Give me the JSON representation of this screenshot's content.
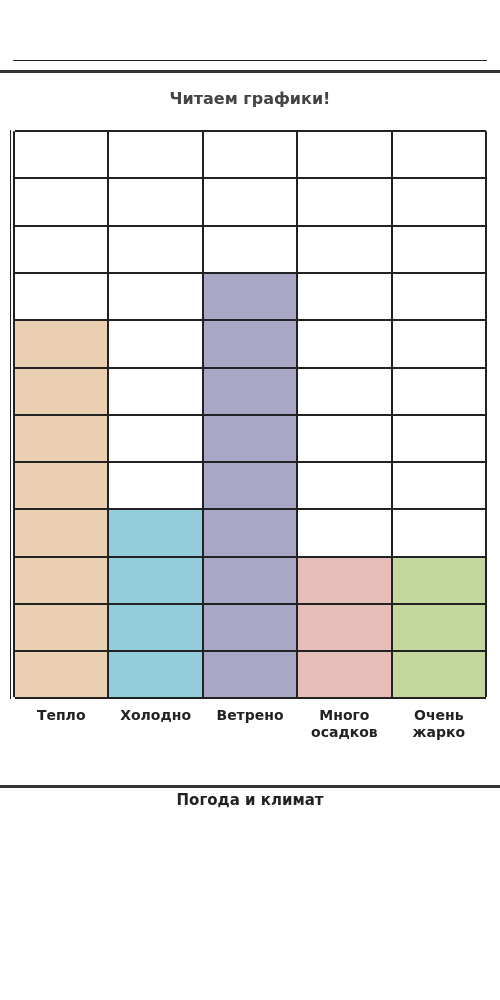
{
  "chart_data": {
    "type": "bar",
    "title": "Читаем графики!",
    "x_label": "Погода и климат",
    "categories": [
      "Тепло",
      "Холодно",
      "Ветрено",
      "Много осадков",
      "Очень жарко"
    ],
    "values": [
      8,
      4,
      9,
      3,
      3
    ],
    "colors": [
      "#ebcfb3",
      "#93cddb",
      "#a8a7c6",
      "#e6bdb8",
      "#c4d79d"
    ],
    "ylim": [
      0,
      12
    ],
    "yticks": [
      0,
      1,
      2,
      3,
      4,
      5,
      6,
      7,
      8,
      9,
      10,
      11,
      12
    ],
    "grid": true,
    "tick_labels": "x"
  }
}
